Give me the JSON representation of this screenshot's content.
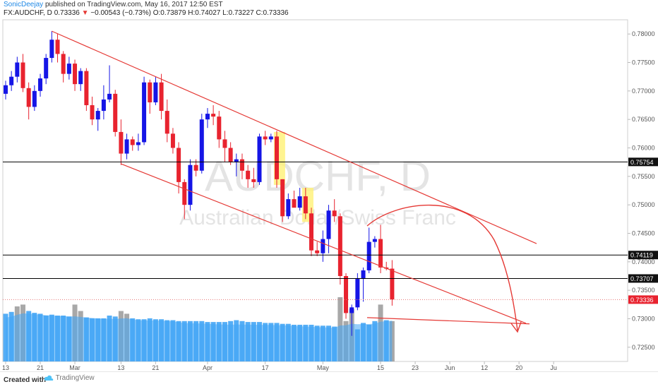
{
  "header": {
    "author": "SonicDeejay",
    "published": "published on TradingView.com, May 16, 2017 12:50 EST",
    "symbol": "FX:AUDCHF, D",
    "last": "0.73336",
    "change": "−0.00543 (−0.73%)",
    "ohlc_o": "O:0.73879",
    "ohlc_h": "H:0.74027",
    "ohlc_l": "L:0.73227",
    "ohlc_c": "C:0.73336"
  },
  "watermark": {
    "symbol": "AUDCHF, D",
    "name": "Australian Dollar/Swiss Franc"
  },
  "footer": {
    "created_with": "Created with",
    "brand": "TradingView"
  },
  "colors": {
    "up": "#1515e6",
    "down": "#e8232f",
    "volume": "#42a5f5",
    "volume_gray": "#9e9e9e",
    "channel": "#e53935",
    "level": "#000000",
    "highlight": "#fff176"
  },
  "chart_data": {
    "type": "candlestick",
    "symbol": "FX:AUDCHF",
    "timeframe": "D",
    "y_axis": {
      "min": 0.7225,
      "max": 0.7825,
      "ticks": [
        "0.78000",
        "0.77500",
        "0.77000",
        "0.76500",
        "0.76000",
        "0.75500",
        "0.75000",
        "0.74500",
        "0.74000",
        "0.73500",
        "0.73000",
        "0.72500"
      ]
    },
    "x_axis": {
      "labels": [
        {
          "label": "13",
          "index": 0
        },
        {
          "label": "21",
          "index": 6
        },
        {
          "label": "Mar",
          "index": 12
        },
        {
          "label": "13",
          "index": 20
        },
        {
          "label": "21",
          "index": 26
        },
        {
          "label": "Apr",
          "index": 35
        },
        {
          "label": "17",
          "index": 45
        },
        {
          "label": "May",
          "index": 55
        },
        {
          "label": "15",
          "index": 65
        },
        {
          "label": "23",
          "index": 71
        },
        {
          "label": "Jun",
          "index": 77
        },
        {
          "label": "12",
          "index": 83
        },
        {
          "label": "20",
          "index": 89
        },
        {
          "label": "Ju",
          "index": 95
        }
      ],
      "total_slots": 96
    },
    "candles": [
      {
        "o": 0.7695,
        "h": 0.7718,
        "l": 0.7685,
        "c": 0.771
      },
      {
        "o": 0.771,
        "h": 0.7735,
        "l": 0.77,
        "c": 0.7725
      },
      {
        "o": 0.7725,
        "h": 0.776,
        "l": 0.7715,
        "c": 0.775
      },
      {
        "o": 0.775,
        "h": 0.7765,
        "l": 0.7698,
        "c": 0.7705
      },
      {
        "o": 0.7705,
        "h": 0.7715,
        "l": 0.765,
        "c": 0.7672
      },
      {
        "o": 0.7672,
        "h": 0.771,
        "l": 0.7665,
        "c": 0.77
      },
      {
        "o": 0.77,
        "h": 0.773,
        "l": 0.769,
        "c": 0.7722
      },
      {
        "o": 0.7722,
        "h": 0.7765,
        "l": 0.7712,
        "c": 0.7758
      },
      {
        "o": 0.7758,
        "h": 0.7805,
        "l": 0.775,
        "c": 0.779
      },
      {
        "o": 0.779,
        "h": 0.78,
        "l": 0.775,
        "c": 0.7765
      },
      {
        "o": 0.7765,
        "h": 0.777,
        "l": 0.7715,
        "c": 0.773
      },
      {
        "o": 0.773,
        "h": 0.776,
        "l": 0.772,
        "c": 0.7748
      },
      {
        "o": 0.7748,
        "h": 0.7755,
        "l": 0.77,
        "c": 0.7712
      },
      {
        "o": 0.7712,
        "h": 0.774,
        "l": 0.77,
        "c": 0.7735
      },
      {
        "o": 0.7735,
        "h": 0.774,
        "l": 0.7665,
        "c": 0.7675
      },
      {
        "o": 0.7675,
        "h": 0.769,
        "l": 0.764,
        "c": 0.765
      },
      {
        "o": 0.765,
        "h": 0.767,
        "l": 0.763,
        "c": 0.7665
      },
      {
        "o": 0.7665,
        "h": 0.771,
        "l": 0.765,
        "c": 0.7685
      },
      {
        "o": 0.7685,
        "h": 0.7745,
        "l": 0.768,
        "c": 0.7695
      },
      {
        "o": 0.7695,
        "h": 0.7702,
        "l": 0.762,
        "c": 0.7628
      },
      {
        "o": 0.7628,
        "h": 0.765,
        "l": 0.757,
        "c": 0.759
      },
      {
        "o": 0.759,
        "h": 0.7625,
        "l": 0.758,
        "c": 0.7615
      },
      {
        "o": 0.7615,
        "h": 0.762,
        "l": 0.7595,
        "c": 0.7605
      },
      {
        "o": 0.7605,
        "h": 0.7625,
        "l": 0.7595,
        "c": 0.761
      },
      {
        "o": 0.761,
        "h": 0.7725,
        "l": 0.7605,
        "c": 0.7715
      },
      {
        "o": 0.7715,
        "h": 0.772,
        "l": 0.766,
        "c": 0.768
      },
      {
        "o": 0.768,
        "h": 0.7725,
        "l": 0.7675,
        "c": 0.7715
      },
      {
        "o": 0.7715,
        "h": 0.773,
        "l": 0.765,
        "c": 0.7665
      },
      {
        "o": 0.7665,
        "h": 0.7685,
        "l": 0.761,
        "c": 0.7625
      },
      {
        "o": 0.7625,
        "h": 0.7635,
        "l": 0.759,
        "c": 0.76
      },
      {
        "o": 0.76,
        "h": 0.761,
        "l": 0.752,
        "c": 0.754
      },
      {
        "o": 0.754,
        "h": 0.7545,
        "l": 0.7475,
        "c": 0.75
      },
      {
        "o": 0.75,
        "h": 0.758,
        "l": 0.749,
        "c": 0.757
      },
      {
        "o": 0.757,
        "h": 0.758,
        "l": 0.755,
        "c": 0.756
      },
      {
        "o": 0.756,
        "h": 0.766,
        "l": 0.7555,
        "c": 0.765
      },
      {
        "o": 0.765,
        "h": 0.767,
        "l": 0.7635,
        "c": 0.766
      },
      {
        "o": 0.766,
        "h": 0.7675,
        "l": 0.764,
        "c": 0.7655
      },
      {
        "o": 0.7655,
        "h": 0.7665,
        "l": 0.76,
        "c": 0.7615
      },
      {
        "o": 0.7615,
        "h": 0.763,
        "l": 0.7575,
        "c": 0.76
      },
      {
        "o": 0.76,
        "h": 0.761,
        "l": 0.757,
        "c": 0.7575
      },
      {
        "o": 0.7575,
        "h": 0.759,
        "l": 0.755,
        "c": 0.758
      },
      {
        "o": 0.758,
        "h": 0.759,
        "l": 0.7545,
        "c": 0.756
      },
      {
        "o": 0.756,
        "h": 0.757,
        "l": 0.753,
        "c": 0.7545
      },
      {
        "o": 0.7545,
        "h": 0.7565,
        "l": 0.753,
        "c": 0.754
      },
      {
        "o": 0.754,
        "h": 0.7625,
        "l": 0.7535,
        "c": 0.762
      },
      {
        "o": 0.762,
        "h": 0.763,
        "l": 0.7605,
        "c": 0.7615
      },
      {
        "o": 0.7615,
        "h": 0.7625,
        "l": 0.761,
        "c": 0.762
      },
      {
        "o": 0.762,
        "h": 0.763,
        "l": 0.753,
        "c": 0.7545
      },
      {
        "o": 0.7545,
        "h": 0.7545,
        "l": 0.747,
        "c": 0.748
      },
      {
        "o": 0.748,
        "h": 0.752,
        "l": 0.7475,
        "c": 0.751
      },
      {
        "o": 0.751,
        "h": 0.7525,
        "l": 0.75,
        "c": 0.7495
      },
      {
        "o": 0.7495,
        "h": 0.753,
        "l": 0.749,
        "c": 0.7515
      },
      {
        "o": 0.7515,
        "h": 0.753,
        "l": 0.7475,
        "c": 0.7485
      },
      {
        "o": 0.7485,
        "h": 0.7495,
        "l": 0.741,
        "c": 0.742
      },
      {
        "o": 0.742,
        "h": 0.7435,
        "l": 0.741,
        "c": 0.7415
      },
      {
        "o": 0.7415,
        "h": 0.7455,
        "l": 0.74,
        "c": 0.744
      },
      {
        "o": 0.744,
        "h": 0.75,
        "l": 0.7415,
        "c": 0.749
      },
      {
        "o": 0.749,
        "h": 0.751,
        "l": 0.747,
        "c": 0.748
      },
      {
        "o": 0.748,
        "h": 0.7485,
        "l": 0.736,
        "c": 0.7375
      },
      {
        "o": 0.7375,
        "h": 0.738,
        "l": 0.73,
        "c": 0.731
      },
      {
        "o": 0.731,
        "h": 0.7325,
        "l": 0.727,
        "c": 0.732
      },
      {
        "o": 0.732,
        "h": 0.738,
        "l": 0.7315,
        "c": 0.737
      },
      {
        "o": 0.737,
        "h": 0.739,
        "l": 0.733,
        "c": 0.7385
      },
      {
        "o": 0.7385,
        "h": 0.746,
        "l": 0.738,
        "c": 0.7435
      },
      {
        "o": 0.7435,
        "h": 0.7445,
        "l": 0.7425,
        "c": 0.744
      },
      {
        "o": 0.744,
        "h": 0.7465,
        "l": 0.738,
        "c": 0.739
      },
      {
        "o": 0.739,
        "h": 0.74,
        "l": 0.7385,
        "c": 0.7388
      },
      {
        "o": 0.7388,
        "h": 0.7403,
        "l": 0.7323,
        "c": 0.7334
      }
    ],
    "volume": {
      "gray": [
        0,
        0,
        1,
        1,
        0,
        0,
        0,
        0,
        0,
        0,
        0,
        0,
        1,
        1,
        0,
        0,
        0,
        0,
        0,
        0,
        1,
        1,
        0,
        0,
        0,
        0,
        0,
        0,
        0,
        0,
        0,
        0,
        0,
        0,
        0,
        0,
        0,
        0,
        0,
        0,
        0,
        0,
        0,
        0,
        0,
        0,
        0,
        0,
        0,
        0,
        0,
        0,
        0,
        0,
        0,
        0,
        0,
        0,
        1,
        1,
        1,
        0,
        0,
        0,
        0,
        1,
        0,
        1
      ],
      "values": [
        0.52,
        0.54,
        0.6,
        0.62,
        0.55,
        0.53,
        0.52,
        0.5,
        0.51,
        0.5,
        0.5,
        0.49,
        0.62,
        0.55,
        0.48,
        0.47,
        0.47,
        0.47,
        0.5,
        0.49,
        0.55,
        0.52,
        0.47,
        0.46,
        0.46,
        0.47,
        0.46,
        0.46,
        0.45,
        0.45,
        0.44,
        0.44,
        0.44,
        0.44,
        0.44,
        0.43,
        0.43,
        0.43,
        0.43,
        0.44,
        0.45,
        0.44,
        0.43,
        0.43,
        0.43,
        0.42,
        0.42,
        0.42,
        0.41,
        0.41,
        0.4,
        0.4,
        0.4,
        0.4,
        0.39,
        0.39,
        0.39,
        0.38,
        0.7,
        0.44,
        0.57,
        0.35,
        0.42,
        0.4,
        0.44,
        0.62,
        0.45,
        0.44
      ]
    },
    "horizontal_levels": [
      {
        "value": 0.75754,
        "label": "0.75754"
      },
      {
        "value": 0.74119,
        "label": "0.74119"
      },
      {
        "value": 0.73707,
        "label": "0.73707"
      }
    ],
    "last_price": {
      "value": 0.73336,
      "label": "0.73336"
    }
  }
}
